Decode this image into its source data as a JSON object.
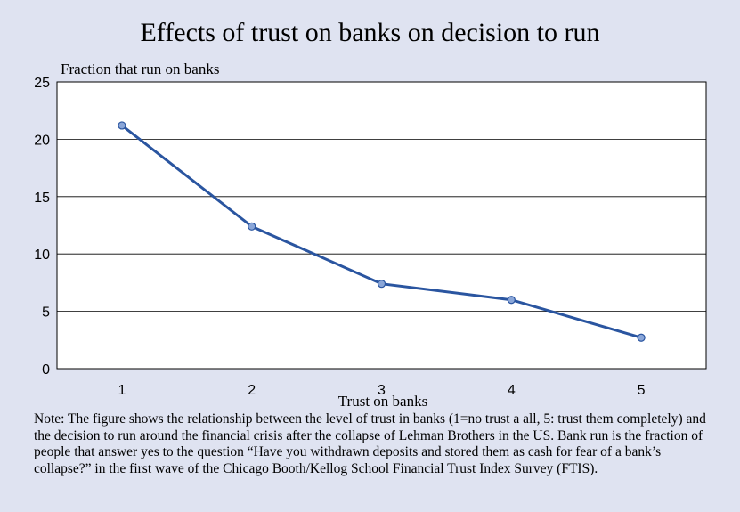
{
  "chart_data": {
    "type": "line",
    "title": "Effects of trust on banks on decision to run",
    "ylabel": "Fraction that run on banks",
    "xlabel": "Trust on banks",
    "x": [
      1,
      2,
      3,
      4,
      5
    ],
    "y": [
      21.2,
      12.4,
      7.4,
      6.0,
      2.7
    ],
    "xlim": [
      0.5,
      5.5
    ],
    "ylim": [
      0,
      25
    ],
    "yticks": [
      0,
      5,
      10,
      15,
      20,
      25
    ],
    "xticks": [
      1,
      2,
      3,
      4,
      5
    ],
    "grid": "horizontal",
    "line_color": "#2a55a0",
    "marker_fill": "#8aa6d8",
    "background": "#dfe3f1"
  },
  "note": "Note: The figure shows the relationship between the level of trust in banks (1=no trust a all, 5: trust them completely) and the decision to run around the financial crisis after the collapse of Lehman Brothers in the US. Bank run is the fraction of people that answer yes to the question “Have you withdrawn deposits and stored them as cash for fear of a bank’s collapse?” in the first wave of the Chicago Booth/Kellog School Financial Trust Index Survey (FTIS)."
}
